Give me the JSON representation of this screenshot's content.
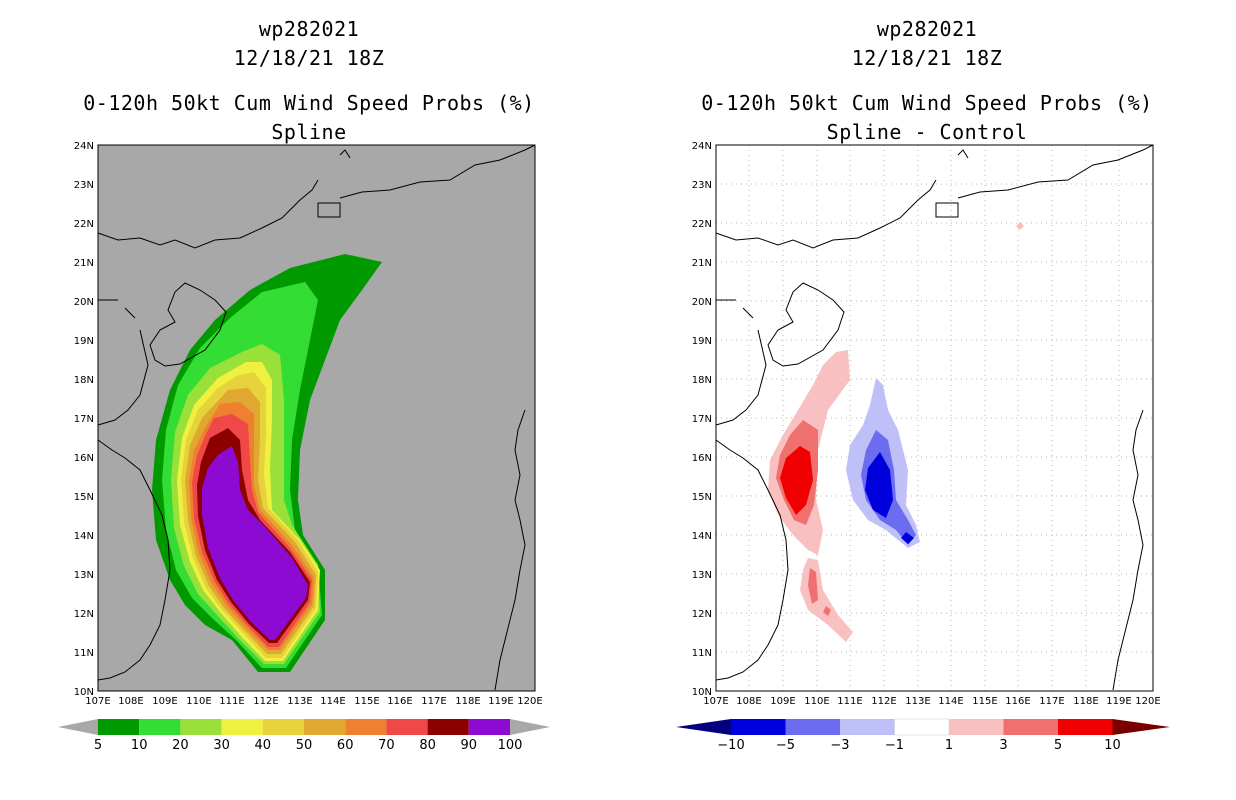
{
  "left": {
    "storm_id": "wp282021",
    "datetime": "12/18/21 18Z",
    "product": "0-120h 50kt Cum Wind Speed Probs (%)",
    "subtitle": "Spline",
    "background": "#a8a8a8",
    "lat_labels": [
      "24N",
      "23N",
      "22N",
      "21N",
      "20N",
      "19N",
      "18N",
      "17N",
      "16N",
      "15N",
      "14N",
      "13N",
      "12N",
      "11N",
      "10N"
    ],
    "lon_labels": [
      "107E",
      "108E",
      "109E",
      "110E",
      "111E",
      "112E",
      "113E",
      "114E",
      "115E",
      "116E",
      "117E",
      "118E",
      "119E",
      "120E"
    ],
    "colorbar": {
      "labels": [
        "5",
        "10",
        "20",
        "30",
        "40",
        "50",
        "60",
        "70",
        "80",
        "90",
        "100"
      ],
      "colors": [
        "#009900",
        "#33dd33",
        "#99e03a",
        "#f0f040",
        "#e6d23a",
        "#e0a830",
        "#ee8030",
        "#f04848",
        "#8c0000",
        "#8c0ad2"
      ],
      "end_colors": [
        "#a8a8a8",
        "#a8a8a8"
      ]
    }
  },
  "right": {
    "storm_id": "wp282021",
    "datetime": "12/18/21 18Z",
    "product": "0-120h 50kt Cum Wind Speed Probs (%)",
    "subtitle": "Spline - Control",
    "background": "#ffffff",
    "lat_labels": [
      "24N",
      "23N",
      "22N",
      "21N",
      "20N",
      "19N",
      "18N",
      "17N",
      "16N",
      "15N",
      "14N",
      "13N",
      "12N",
      "11N",
      "10N"
    ],
    "lon_labels": [
      "107E",
      "108E",
      "109E",
      "110E",
      "111E",
      "112E",
      "113E",
      "114E",
      "115E",
      "116E",
      "117E",
      "118E",
      "119E",
      "120E"
    ],
    "colorbar": {
      "labels": [
        "−10",
        "−5",
        "−3",
        "−1",
        "1",
        "3",
        "5",
        "10"
      ],
      "colors": [
        "#0000dd",
        "#6c6cf0",
        "#c0c0f8",
        "#ffffff",
        "#f8c0c0",
        "#f07070",
        "#f00000"
      ],
      "end_colors": [
        "#000080",
        "#7a0000"
      ]
    }
  }
}
